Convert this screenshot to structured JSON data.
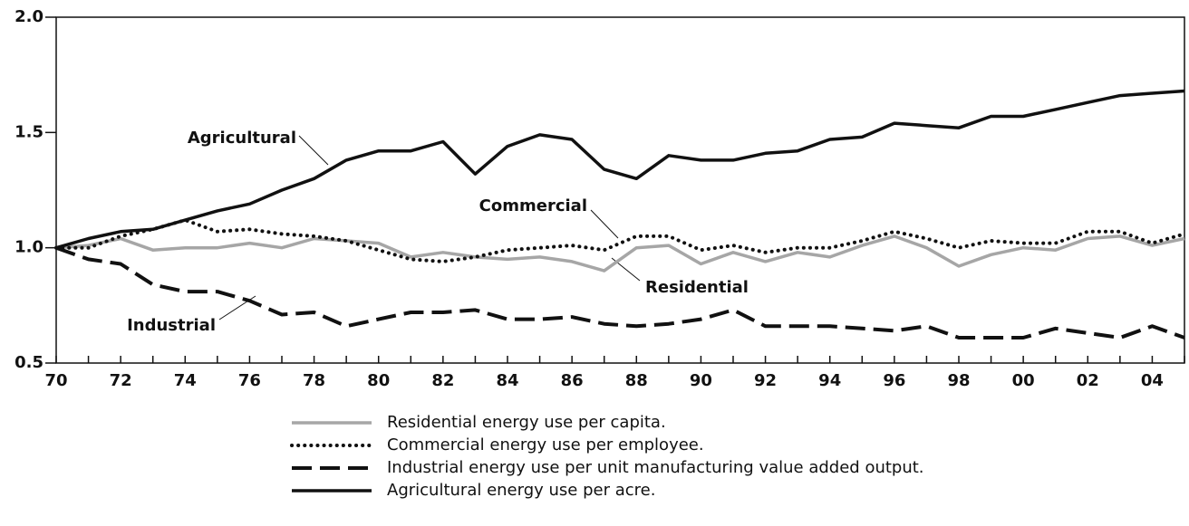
{
  "chart_data": {
    "type": "line",
    "categories": [
      "70",
      null,
      "72",
      null,
      "74",
      null,
      "76",
      null,
      "78",
      null,
      "80",
      null,
      "82",
      null,
      "84",
      null,
      "86",
      null,
      "88",
      null,
      "90",
      null,
      "92",
      null,
      "94",
      null,
      "96",
      null,
      "98",
      null,
      "00",
      null,
      "02",
      null,
      "04",
      null
    ],
    "ylim": [
      0.5,
      2.0
    ],
    "yticks": [
      {
        "value": 0.5,
        "label": "0.5"
      },
      {
        "value": 1.0,
        "label": "1.0"
      },
      {
        "value": 1.5,
        "label": "1.5"
      },
      {
        "value": 2.0,
        "label": "2.0"
      }
    ],
    "grid": false,
    "series": [
      {
        "name": "Residential energy use per capita.",
        "color": "#a6a6a6",
        "dash": "solid",
        "values": [
          1.0,
          1.01,
          1.04,
          0.99,
          1.0,
          1.0,
          1.02,
          1.0,
          1.04,
          1.03,
          1.02,
          0.96,
          0.98,
          0.96,
          0.95,
          0.96,
          0.94,
          0.9,
          1.0,
          1.01,
          0.93,
          0.98,
          0.94,
          0.98,
          0.96,
          1.01,
          1.05,
          1.0,
          0.92,
          0.97,
          1.0,
          0.99,
          1.04,
          1.05,
          1.01,
          1.04
        ]
      },
      {
        "name": "Commercial energy use per employee.",
        "color": "#111111",
        "dash": "dotted",
        "values": [
          1.0,
          1.0,
          1.05,
          1.08,
          1.12,
          1.07,
          1.08,
          1.06,
          1.05,
          1.03,
          0.99,
          0.95,
          0.94,
          0.96,
          0.99,
          1.0,
          1.01,
          0.99,
          1.05,
          1.05,
          0.99,
          1.01,
          0.98,
          1.0,
          1.0,
          1.03,
          1.07,
          1.04,
          1.0,
          1.03,
          1.02,
          1.02,
          1.07,
          1.07,
          1.02,
          1.06
        ]
      },
      {
        "name": "Industrial energy use per unit manufacturing value added output.",
        "color": "#111111",
        "dash": "dashed",
        "values": [
          1.0,
          0.95,
          0.93,
          0.84,
          0.81,
          0.81,
          0.77,
          0.71,
          0.72,
          0.66,
          0.69,
          0.72,
          0.72,
          0.73,
          0.69,
          0.69,
          0.7,
          0.67,
          0.66,
          0.67,
          0.69,
          0.73,
          0.66,
          0.66,
          0.66,
          0.65,
          0.64,
          0.66,
          0.61,
          0.61,
          0.61,
          0.65,
          0.63,
          0.61,
          0.66,
          0.61
        ]
      },
      {
        "name": "Agricultural energy use per acre.",
        "color": "#111111",
        "dash": "solid",
        "values": [
          1.0,
          1.04,
          1.07,
          1.08,
          1.12,
          1.16,
          1.19,
          1.25,
          1.3,
          1.38,
          1.42,
          1.42,
          1.46,
          1.32,
          1.44,
          1.49,
          1.47,
          1.34,
          1.3,
          1.4,
          1.38,
          1.38,
          1.41,
          1.42,
          1.47,
          1.48,
          1.54,
          1.53,
          1.52,
          1.57,
          1.57,
          1.6,
          1.63,
          1.66,
          1.67,
          1.68
        ]
      }
    ],
    "annotations": [
      "Agricultural",
      "Commercial",
      "Residential",
      "Industrial"
    ]
  }
}
